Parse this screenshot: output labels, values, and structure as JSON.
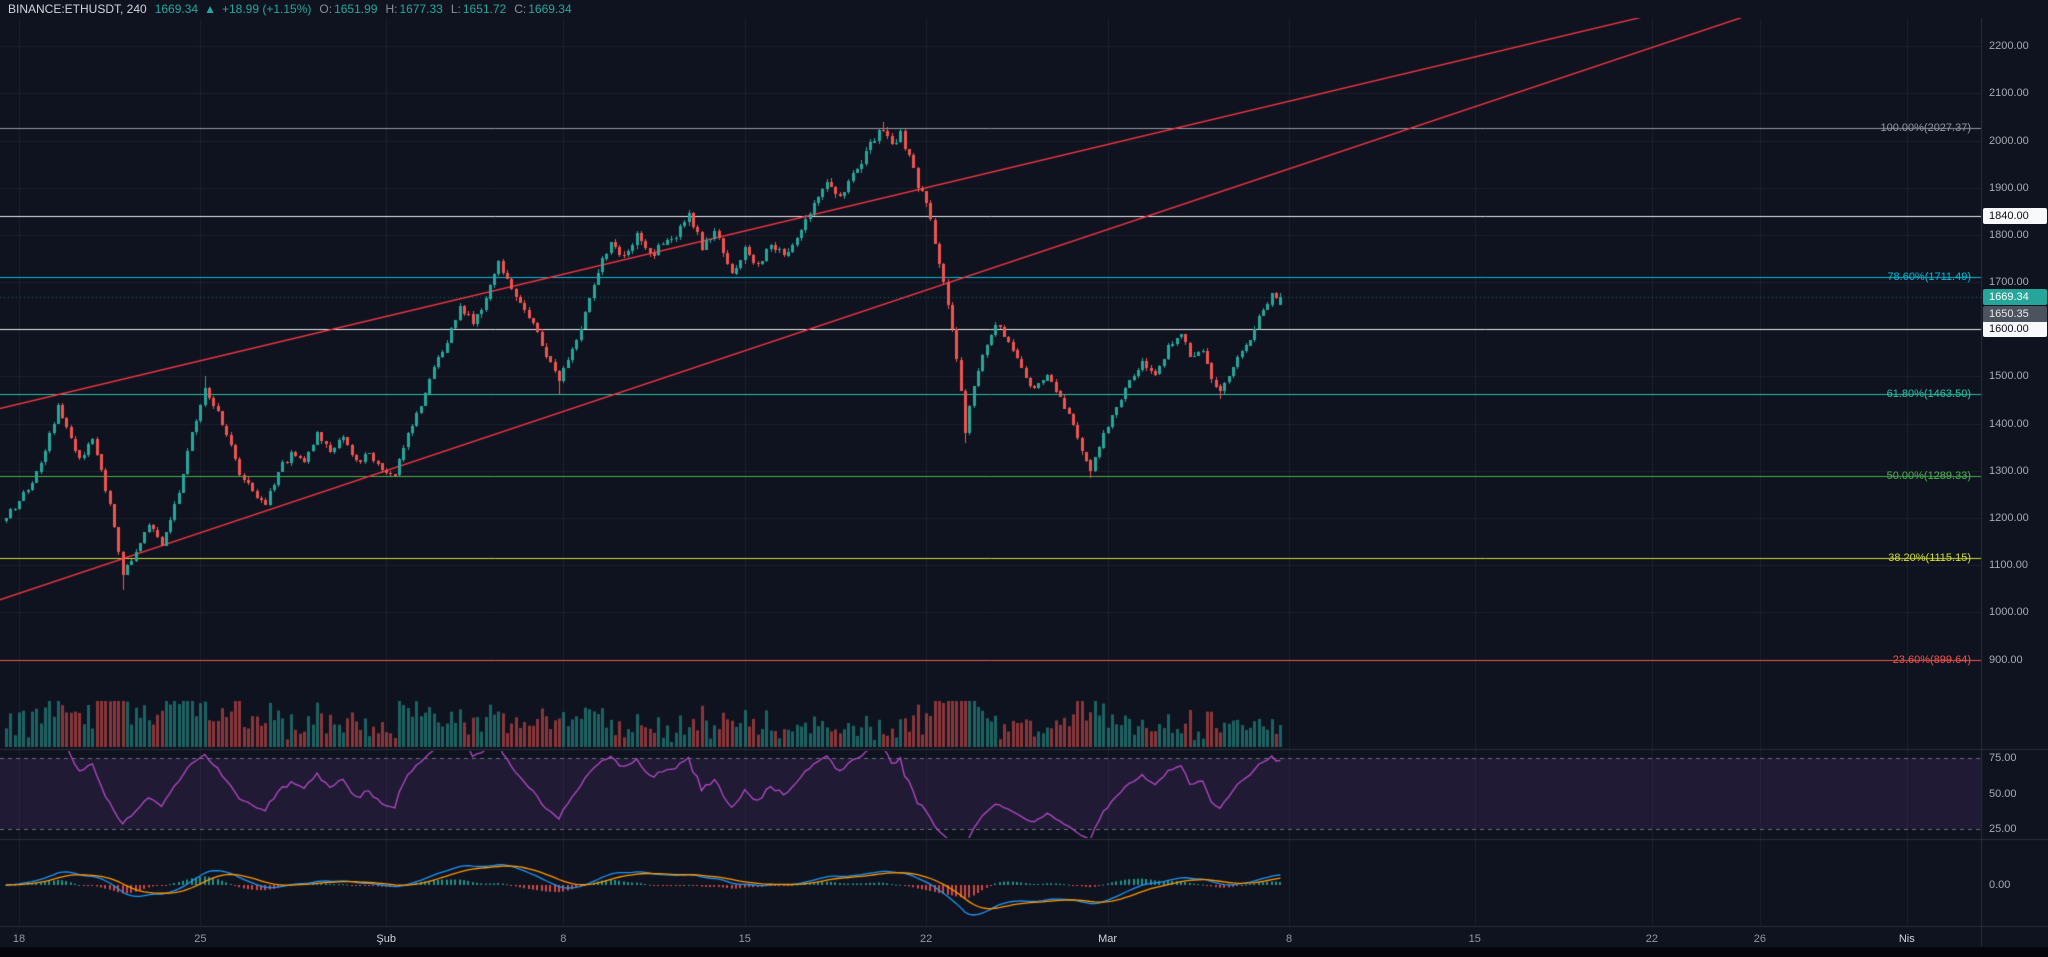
{
  "header": {
    "symbol": "BINANCE:ETHUSDT, 240",
    "last_price": "1669.34",
    "direction_arrow": "▲",
    "change": "+18.99 (+1.15%)",
    "ohlc": [
      {
        "label": "O:",
        "value": "1651.99"
      },
      {
        "label": "H:",
        "value": "1677.33"
      },
      {
        "label": "L:",
        "value": "1651.72"
      },
      {
        "label": "C:",
        "value": "1669.34"
      }
    ]
  },
  "colors": {
    "background": "#0f131f",
    "grid": "rgba(255,255,255,0.05)",
    "axis_text": "#a6aab4",
    "up": "#26a69a",
    "down": "#ef5350",
    "trendline": "#f23645",
    "white_line": "#e9e9ea",
    "rsi_line": "#ab47bc",
    "rsi_band_fill": "rgba(145,70,190,0.14)",
    "rsi_band_border": "#6a6d78",
    "macd_line": "#2196f3",
    "macd_signal": "#ff9800",
    "separator": "#2a2e39",
    "time_text": "#9598a1",
    "time_month_text": "#d1d4dc"
  },
  "chart_data": {
    "type": "candlestick",
    "symbol": "BINANCE:ETHUSDT",
    "interval_minutes": 240,
    "num_candles": 296,
    "price_axis": {
      "top_price": 2260,
      "bottom_price": 829,
      "ticks": [
        "2200.00",
        "2100.00",
        "2000.00",
        "1900.00",
        "1800.00",
        "1700.00",
        "1500.00",
        "1400.00",
        "1300.00",
        "1200.00",
        "1100.00",
        "1000.00",
        "900.00"
      ]
    },
    "fib_levels": [
      {
        "label": "100.00%(2027.37)",
        "price": 2027.37,
        "color": "#9598a1"
      },
      {
        "label": "78.60%(1711.49)",
        "price": 1711.49,
        "color": "#00bcd4"
      },
      {
        "label": "61.80%(1463.50)",
        "price": 1463.5,
        "color": "#2bc0a4"
      },
      {
        "label": "50.00%(1289.33)",
        "price": 1289.33,
        "color": "#4caf50"
      },
      {
        "label": "38.20%(1115.15)",
        "price": 1115.15,
        "color": "#cddc39"
      },
      {
        "label": "23.60%(899.64)",
        "price": 899.64,
        "color": "#ef5350"
      }
    ],
    "horizontal_lines": [
      {
        "price": 1840,
        "label": "1840.00"
      },
      {
        "price": 1600,
        "label": "1600.00"
      }
    ],
    "price_tags": [
      {
        "text": "1669.34",
        "price": 1669.34,
        "style": "current"
      },
      {
        "text": "1650.35",
        "price": 1650.35,
        "style": "secondary"
      }
    ],
    "trendlines": [
      {
        "from": {
          "index": -2,
          "price": 1025
        },
        "to": {
          "index": 408,
          "price": 2280
        }
      },
      {
        "from": {
          "index": -2,
          "price": 1431
        },
        "to": {
          "index": 387,
          "price": 2280
        }
      }
    ],
    "close_anchors": [
      [
        0,
        1200
      ],
      [
        3,
        1238
      ],
      [
        6,
        1272
      ],
      [
        9,
        1340
      ],
      [
        12,
        1440
      ],
      [
        15,
        1368
      ],
      [
        17,
        1326
      ],
      [
        20,
        1368
      ],
      [
        24,
        1227
      ],
      [
        27,
        1081
      ],
      [
        30,
        1129
      ],
      [
        33,
        1185
      ],
      [
        36,
        1143
      ],
      [
        40,
        1256
      ],
      [
        43,
        1382
      ],
      [
        46,
        1475
      ],
      [
        49,
        1425
      ],
      [
        52,
        1354
      ],
      [
        54,
        1289
      ],
      [
        57,
        1256
      ],
      [
        60,
        1227
      ],
      [
        63,
        1298
      ],
      [
        66,
        1340
      ],
      [
        69,
        1320
      ],
      [
        72,
        1382
      ],
      [
        75,
        1340
      ],
      [
        78,
        1368
      ],
      [
        81,
        1320
      ],
      [
        84,
        1340
      ],
      [
        87,
        1303
      ],
      [
        90,
        1292
      ],
      [
        93,
        1382
      ],
      [
        96,
        1439
      ],
      [
        99,
        1518
      ],
      [
        102,
        1574
      ],
      [
        105,
        1650
      ],
      [
        108,
        1614
      ],
      [
        111,
        1664
      ],
      [
        114,
        1743
      ],
      [
        117,
        1687
      ],
      [
        120,
        1642
      ],
      [
        123,
        1594
      ],
      [
        126,
        1529
      ],
      [
        128,
        1490
      ],
      [
        131,
        1557
      ],
      [
        134,
        1636
      ],
      [
        137,
        1721
      ],
      [
        140,
        1783
      ],
      [
        143,
        1755
      ],
      [
        146,
        1800
      ],
      [
        149,
        1760
      ],
      [
        152,
        1777
      ],
      [
        155,
        1791
      ],
      [
        158,
        1848
      ],
      [
        161,
        1772
      ],
      [
        164,
        1811
      ],
      [
        168,
        1715
      ],
      [
        171,
        1772
      ],
      [
        174,
        1735
      ],
      [
        177,
        1783
      ],
      [
        180,
        1755
      ],
      [
        184,
        1811
      ],
      [
        187,
        1867
      ],
      [
        190,
        1913
      ],
      [
        193,
        1884
      ],
      [
        196,
        1929
      ],
      [
        199,
        1975
      ],
      [
        202,
        2025
      ],
      [
        205,
        1997
      ],
      [
        207,
        2020
      ],
      [
        209,
        1969
      ],
      [
        211,
        1901
      ],
      [
        213,
        1867
      ],
      [
        215,
        1783
      ],
      [
        217,
        1698
      ],
      [
        219,
        1602
      ],
      [
        221,
        1467
      ],
      [
        222,
        1382
      ],
      [
        224,
        1481
      ],
      [
        226,
        1546
      ],
      [
        229,
        1608
      ],
      [
        232,
        1574
      ],
      [
        235,
        1518
      ],
      [
        238,
        1473
      ],
      [
        241,
        1501
      ],
      [
        244,
        1453
      ],
      [
        247,
        1396
      ],
      [
        249,
        1340
      ],
      [
        251,
        1298
      ],
      [
        254,
        1382
      ],
      [
        257,
        1433
      ],
      [
        260,
        1490
      ],
      [
        263,
        1535
      ],
      [
        266,
        1506
      ],
      [
        269,
        1563
      ],
      [
        272,
        1591
      ],
      [
        274,
        1540
      ],
      [
        277,
        1552
      ],
      [
        279,
        1495
      ],
      [
        281,
        1467
      ],
      [
        284,
        1518
      ],
      [
        287,
        1563
      ],
      [
        290,
        1631
      ],
      [
        293,
        1676
      ],
      [
        295,
        1669.34
      ]
    ],
    "wick_overrides": {
      "27": {
        "low": 1048
      },
      "46": {
        "high": 1502
      },
      "128": {
        "low": 1461
      },
      "203": {
        "high": 2040
      },
      "222": {
        "low": 1358
      },
      "251": {
        "low": 1285
      },
      "281": {
        "low": 1452
      }
    },
    "last_candle": {
      "open": 1651.99,
      "high": 1677.33,
      "low": 1651.72,
      "close": 1669.34
    },
    "time_axis": {
      "ticks": [
        {
          "label": "18",
          "index": 3,
          "month": false
        },
        {
          "label": "25",
          "index": 45,
          "month": false
        },
        {
          "label": "Şub",
          "index": 88,
          "month": true
        },
        {
          "label": "8",
          "index": 129,
          "month": false
        },
        {
          "label": "15",
          "index": 171,
          "month": false
        },
        {
          "label": "22",
          "index": 213,
          "month": false
        },
        {
          "label": "Mar",
          "index": 255,
          "month": true
        },
        {
          "label": "8",
          "index": 297,
          "month": false
        },
        {
          "label": "15",
          "index": 340,
          "month": false
        },
        {
          "label": "22",
          "index": 381,
          "month": false
        },
        {
          "label": "26",
          "index": 406,
          "month": false
        },
        {
          "label": "Nis",
          "index": 440,
          "month": true
        }
      ]
    },
    "indicators": {
      "volume": {
        "type": "volume"
      },
      "rsi": {
        "period": 14,
        "upper_band": 75,
        "lower_band": 25,
        "axis_labels": [
          "75.00",
          "50.00",
          "25.00"
        ],
        "axis_values": [
          75,
          50,
          25
        ]
      },
      "macd": {
        "fast": 12,
        "slow": 26,
        "signal": 9,
        "axis_labels": [
          "0.00"
        ]
      }
    }
  }
}
